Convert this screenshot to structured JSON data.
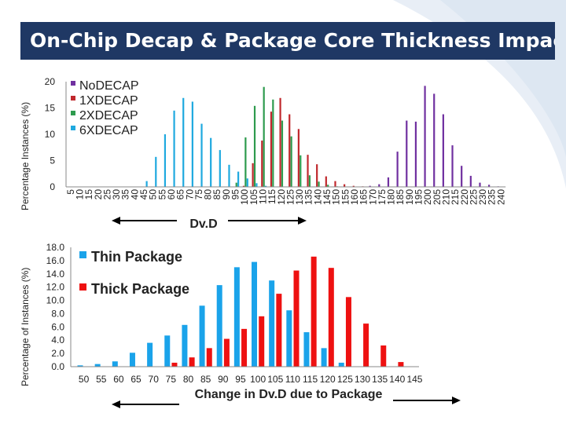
{
  "title": "On-Chip Decap & Package Core Thickness Impact",
  "colors": {
    "title_bg": "#1f3864",
    "nodecap": "#7030a0",
    "one_x": "#c0282d",
    "two_x": "#2e9b4e",
    "six_x": "#1fa9df",
    "thin": "#1aa3ea",
    "thick": "#ee1111"
  },
  "chart_data": [
    {
      "type": "bar",
      "ylabel": "Percentage Instances (%)",
      "xlabel": "Dv.D",
      "ylim": [
        0,
        20
      ],
      "yticks": [
        0,
        5,
        10,
        15,
        20
      ],
      "grid": false,
      "legend_position": "top-left",
      "categories": [
        "5",
        "10",
        "15",
        "20",
        "25",
        "30",
        "35",
        "40",
        "45",
        "50",
        "55",
        "60",
        "65",
        "70",
        "75",
        "80",
        "85",
        "90",
        "95",
        "100",
        "105",
        "110",
        "115",
        "120",
        "125",
        "130",
        "135",
        "140",
        "145",
        "150",
        "155",
        "160",
        "165",
        "170",
        "175",
        "180",
        "185",
        "190",
        "195",
        "200",
        "205",
        "210",
        "215",
        "220",
        "225",
        "230",
        "235",
        "240"
      ],
      "series": [
        {
          "name": "NoDECAP",
          "values": [
            0,
            0,
            0,
            0,
            0,
            0,
            0,
            0,
            0,
            0,
            0,
            0,
            0,
            0,
            0,
            0,
            0,
            0,
            0,
            0,
            0,
            0,
            0,
            0,
            0,
            0,
            0,
            0,
            0,
            0,
            0,
            0,
            0,
            0.2,
            0.5,
            1.8,
            6.7,
            12.6,
            12.4,
            19.2,
            17.7,
            13.8,
            7.9,
            4.0,
            2.1,
            0.8,
            0.4,
            0.1
          ]
        },
        {
          "name": "1XDECAP",
          "values": [
            0,
            0,
            0,
            0,
            0,
            0,
            0,
            0,
            0,
            0,
            0,
            0,
            0,
            0,
            0,
            0,
            0,
            0,
            0,
            0.2,
            4.5,
            8.8,
            14.3,
            16.9,
            13.8,
            11.0,
            6.1,
            4.3,
            2.0,
            1.1,
            0.5,
            0.2,
            0.1,
            0,
            0,
            0,
            0,
            0,
            0,
            0,
            0,
            0,
            0,
            0,
            0,
            0,
            0,
            0
          ]
        },
        {
          "name": "2XDECAP",
          "values": [
            0,
            0,
            0,
            0,
            0,
            0,
            0,
            0,
            0,
            0,
            0,
            0,
            0,
            0,
            0,
            0,
            0,
            0,
            0.8,
            9.4,
            15.4,
            19.0,
            16.6,
            12.6,
            9.6,
            6.0,
            2.2,
            1.0,
            0.4,
            0.1,
            0,
            0,
            0,
            0,
            0,
            0,
            0,
            0,
            0,
            0,
            0,
            0,
            0,
            0,
            0,
            0,
            0,
            0
          ]
        },
        {
          "name": "6XDECAP",
          "values": [
            0,
            0,
            0,
            0,
            0,
            0,
            0,
            0,
            1.1,
            5.7,
            10.0,
            14.5,
            16.9,
            16.2,
            12.0,
            9.3,
            7.0,
            4.2,
            2.9,
            1.6,
            0.7,
            0.2,
            0,
            0,
            0,
            0,
            0,
            0,
            0,
            0,
            0,
            0,
            0,
            0,
            0,
            0,
            0,
            0,
            0,
            0,
            0,
            0,
            0,
            0,
            0,
            0,
            0,
            0
          ]
        }
      ]
    },
    {
      "type": "bar",
      "ylabel": "Percentage of Instances (%)",
      "xlabel": "Change in Dv.D due to Package",
      "ylim": [
        0,
        18
      ],
      "yticks": [
        "0.0",
        "2.0",
        "4.0",
        "6.0",
        "8.0",
        "10.0",
        "12.0",
        "14.0",
        "16.0",
        "18.0"
      ],
      "grid": false,
      "legend_position": "top-left",
      "categories": [
        "50",
        "55",
        "60",
        "65",
        "70",
        "75",
        "80",
        "85",
        "90",
        "95",
        "100",
        "105",
        "110",
        "115",
        "120",
        "125",
        "130",
        "135",
        "140",
        "145"
      ],
      "series": [
        {
          "name": "Thin Package",
          "values": [
            0.2,
            0.4,
            0.8,
            2.1,
            3.6,
            4.7,
            6.3,
            9.2,
            12.3,
            15.0,
            15.8,
            13.0,
            8.5,
            5.2,
            2.8,
            0.6,
            0,
            0,
            0,
            0
          ]
        },
        {
          "name": "Thick Package",
          "values": [
            0,
            0,
            0,
            0,
            0,
            0.6,
            1.4,
            2.8,
            4.2,
            5.7,
            7.6,
            11.0,
            14.5,
            16.6,
            14.9,
            10.5,
            6.5,
            3.2,
            0.7,
            0
          ]
        }
      ]
    }
  ]
}
